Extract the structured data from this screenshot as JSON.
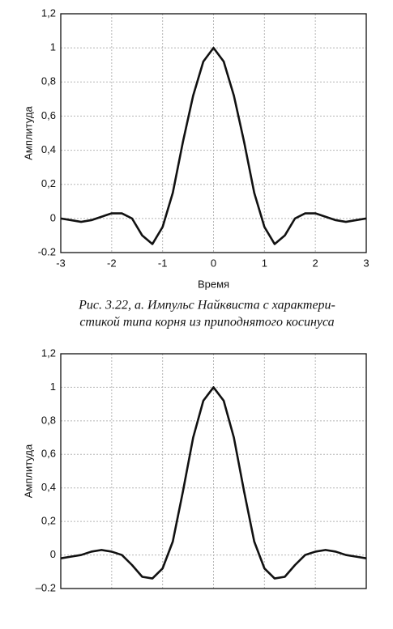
{
  "chart_data": [
    {
      "type": "line",
      "xlabel": "Время",
      "ylabel": "Амплитуда",
      "caption": [
        "Рис. 3.22, а. Импульс Найквиста с характери-",
        "стикой типа корня из приподнятого косинуса"
      ],
      "x": [
        -3,
        -2.8,
        -2.6,
        -2.4,
        -2.2,
        -2,
        -1.8,
        -1.6,
        -1.4,
        -1.2,
        -1,
        -0.8,
        -0.6,
        -0.4,
        -0.2,
        0,
        0.2,
        0.4,
        0.6,
        0.8,
        1,
        1.2,
        1.4,
        1.6,
        1.8,
        2,
        2.2,
        2.4,
        2.6,
        2.8,
        3
      ],
      "series": [
        {
          "color": "#111111",
          "values": [
            0,
            -0.01,
            -0.02,
            -0.01,
            0.01,
            0.03,
            0.03,
            0,
            -0.1,
            -0.15,
            -0.05,
            0.15,
            0.45,
            0.72,
            0.92,
            1,
            0.92,
            0.72,
            0.45,
            0.15,
            -0.05,
            -0.15,
            -0.1,
            0,
            0.03,
            0.03,
            0.01,
            -0.01,
            -0.02,
            -0.01,
            0
          ]
        }
      ],
      "xlim": [
        -3,
        3
      ],
      "xticks": [
        -3,
        -2,
        -1,
        0,
        1,
        2,
        3
      ],
      "show_xtick_labels": true,
      "ylim": [
        -0.2,
        1.2
      ],
      "yticks": [
        {
          "value": -0.2,
          "label": "-0.2"
        },
        0,
        {
          "value": 0.2,
          "label": "0,2"
        },
        {
          "value": 0.4,
          "label": "0,4"
        },
        {
          "value": 0.6,
          "label": "0,6"
        },
        {
          "value": 0.8,
          "label": "0,8"
        },
        1,
        {
          "value": 1.2,
          "label": "1,2"
        }
      ],
      "grid": true
    },
    {
      "type": "line",
      "ylabel": "Амплитуда",
      "x": [
        -3,
        -2.8,
        -2.6,
        -2.4,
        -2.2,
        -2,
        -1.8,
        -1.6,
        -1.4,
        -1.2,
        -1,
        -0.8,
        -0.6,
        -0.4,
        -0.2,
        0,
        0.2,
        0.4,
        0.6,
        0.8,
        1,
        1.2,
        1.4,
        1.6,
        1.8,
        2,
        2.2,
        2.4,
        2.6,
        2.8,
        3
      ],
      "series": [
        {
          "color": "#111111",
          "values": [
            -0.02,
            -0.01,
            0,
            0.02,
            0.03,
            0.02,
            0,
            -0.06,
            -0.13,
            -0.14,
            -0.08,
            0.08,
            0.38,
            0.7,
            0.92,
            1,
            0.92,
            0.7,
            0.38,
            0.08,
            -0.08,
            -0.14,
            -0.13,
            -0.06,
            0,
            0.02,
            0.03,
            0.02,
            0,
            -0.01,
            -0.02
          ]
        }
      ],
      "xlim": [
        -3,
        3
      ],
      "xticks": [
        -3,
        -2,
        -1,
        0,
        1,
        2,
        3
      ],
      "show_xtick_labels": false,
      "ylim": [
        -0.2,
        1.2
      ],
      "yticks": [
        {
          "value": -0.2,
          "label": "–0.2"
        },
        0,
        {
          "value": 0.2,
          "label": "0,2"
        },
        {
          "value": 0.4,
          "label": "0,4"
        },
        {
          "value": 0.6,
          "label": "0,6"
        },
        {
          "value": 0.8,
          "label": "0,8"
        },
        1,
        {
          "value": 1.2,
          "label": "1,2"
        }
      ],
      "grid": true
    }
  ]
}
